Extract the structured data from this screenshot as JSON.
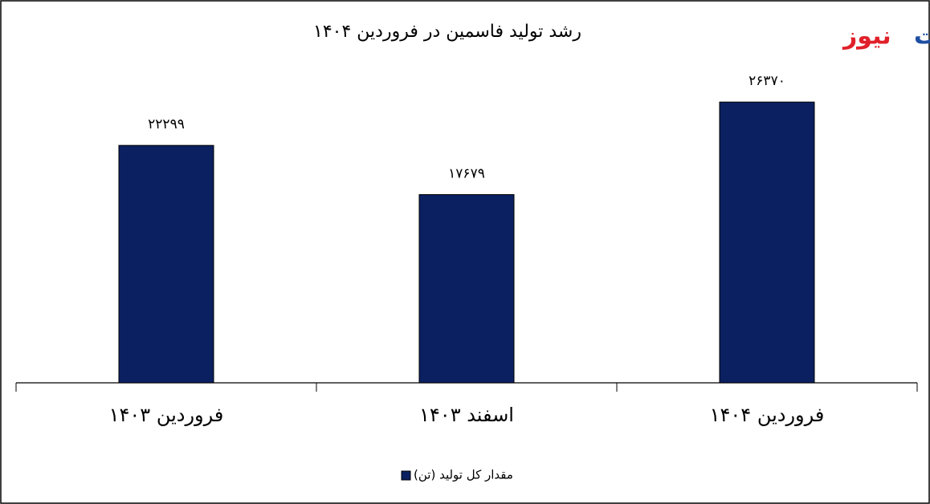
{
  "brand": [
    "تجارت",
    "نیوز"
  ],
  "chart_data": {
    "type": "bar",
    "title": "رشد تولید فاسمین در فروردین ۱۴۰۴",
    "categories": [
      "فروردین ۱۴۰۳",
      "اسفند ۱۴۰۳",
      "فروردین ۱۴۰۴"
    ],
    "series": [
      {
        "name": "مقدار کل تولید (تن)",
        "color": "#0b2060",
        "values": [
          22299,
          17679,
          26370
        ],
        "value_labels": [
          "۲۲۲۹۹",
          "۱۷۶۷۹",
          "۲۶۳۷۰"
        ]
      }
    ],
    "ylim": [
      0,
      30000
    ]
  }
}
